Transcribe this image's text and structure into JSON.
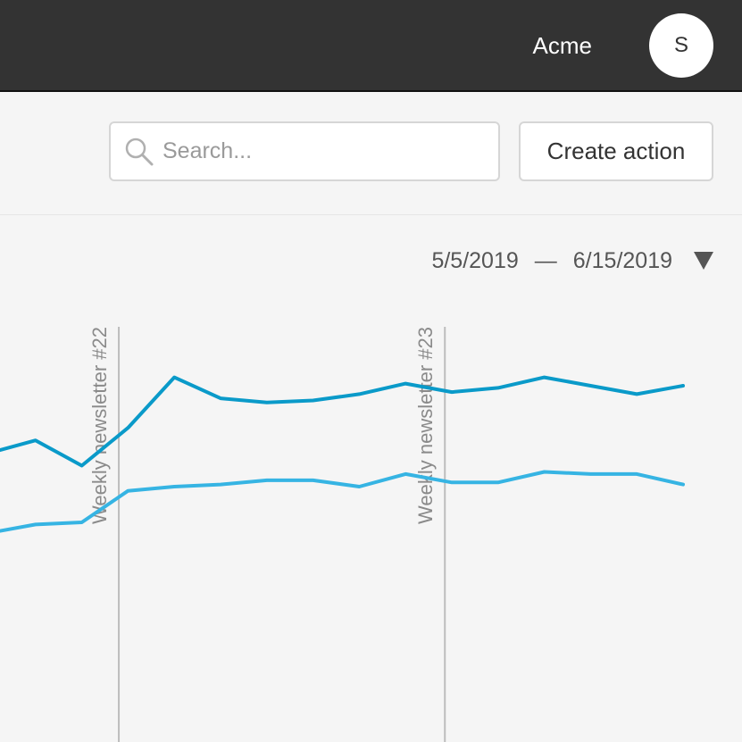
{
  "header": {
    "org_name": "Acme",
    "avatar_initial": "S"
  },
  "toolbar": {
    "search_placeholder": "Search...",
    "search_value": "",
    "create_action_label": "Create action"
  },
  "date_range": {
    "start": "5/5/2019",
    "separator": "—",
    "end": "6/15/2019"
  },
  "colors": {
    "series_1": "#0a9ac9",
    "series_2": "#36b4e3",
    "annotation_line": "#bdbdbd",
    "topbar": "#333333"
  },
  "chart_data": {
    "type": "line",
    "grid": false,
    "legend": "none",
    "y_axis_visible": false,
    "x_axis_visible": false,
    "ylim": [
      0,
      100
    ],
    "xlim": [
      0,
      15
    ],
    "x": [
      0,
      1,
      2,
      3,
      4,
      5,
      6,
      7,
      8,
      9,
      10,
      11,
      12,
      13,
      14,
      15
    ],
    "series": [
      {
        "color": "#0a9ac9",
        "values": [
          64,
          67,
          61,
          70,
          82,
          77,
          76,
          76.5,
          78,
          80.5,
          78.5,
          79.5,
          82,
          80,
          78,
          80
        ]
      },
      {
        "color": "#36b4e3",
        "values": [
          45,
          47,
          47.5,
          55,
          56,
          56.5,
          57.5,
          57.5,
          56,
          59,
          57,
          57,
          59.5,
          59,
          59,
          56.5
        ]
      }
    ],
    "annotations": [
      {
        "x": 2.8,
        "label": "Weekly newsletter #22"
      },
      {
        "x": 9.85,
        "label": "Weekly newsletter #23"
      }
    ]
  }
}
